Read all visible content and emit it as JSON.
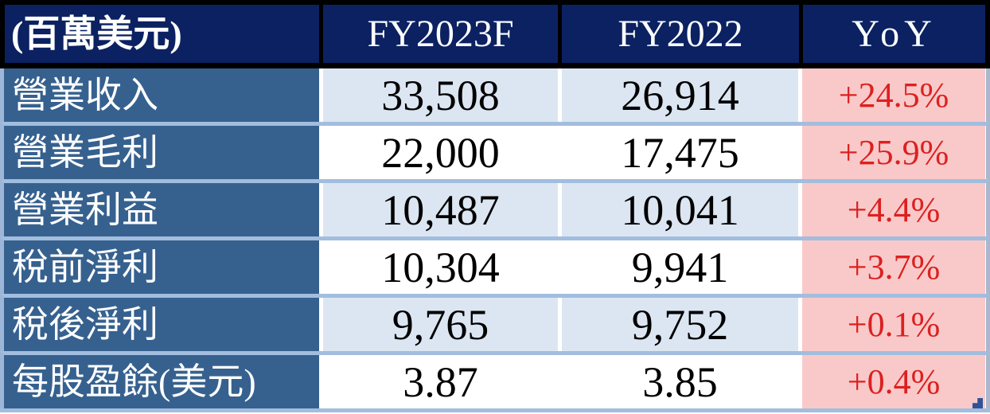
{
  "chart_data": {
    "type": "table",
    "unit_label": "(百萬美元)",
    "columns": [
      "FY2023F",
      "FY2022",
      "YoY"
    ],
    "rows": [
      {
        "label": "營業收入",
        "fy2023f": "33,508",
        "fy2022": "26,914",
        "yoy": "+24.5%"
      },
      {
        "label": "營業毛利",
        "fy2023f": "22,000",
        "fy2022": "17,475",
        "yoy": "+25.9%"
      },
      {
        "label": "營業利益",
        "fy2023f": "10,487",
        "fy2022": "10,041",
        "yoy": "+4.4%"
      },
      {
        "label": "稅前淨利",
        "fy2023f": "10,304",
        "fy2022": "9,941",
        "yoy": "+3.7%"
      },
      {
        "label": "稅後淨利",
        "fy2023f": "9,765",
        "fy2022": "9,752",
        "yoy": "+0.1%"
      },
      {
        "label": "每股盈餘(美元)",
        "fy2023f": "3.87",
        "fy2022": "3.85",
        "yoy": "+0.4%"
      }
    ]
  },
  "colors": {
    "header_bg": "#0B2161",
    "header_frame": "#000000",
    "label_col_bg": "#36618F",
    "row_tint_bg": "#DCE6F2",
    "row_plain_bg": "#FFFFFF",
    "yoy_bg": "#F9C9C9",
    "yoy_text": "#DD2020",
    "grid_separator": "#A2BDDE",
    "outer_left_border": "#9DB6D8",
    "outer_right_border": "#A9B8CC",
    "corner_handle": "#2F5496"
  }
}
